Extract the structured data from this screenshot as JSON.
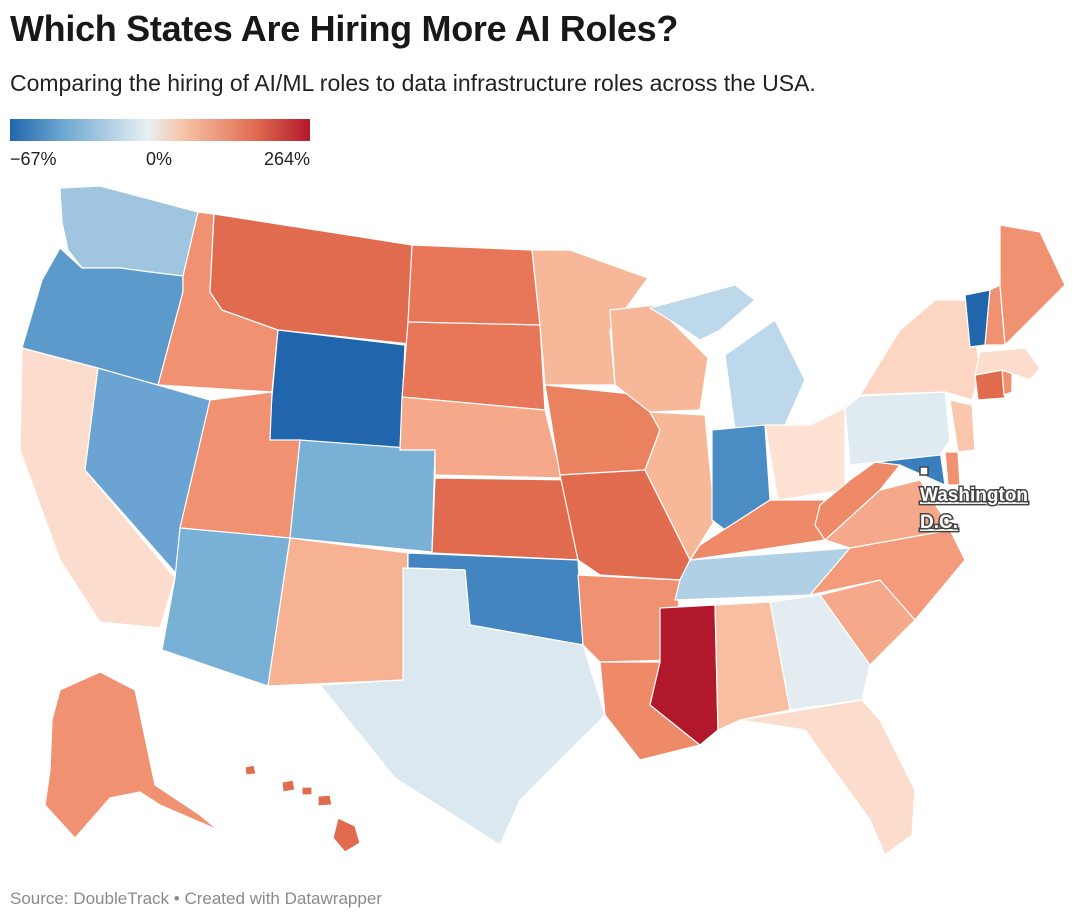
{
  "header": {
    "title": "Which States Are Hiring More AI Roles?",
    "subtitle": "Comparing the hiring of AI/ML roles to data infrastructure roles across the USA."
  },
  "legend": {
    "min_label": "−67%",
    "mid_label": "0%",
    "max_label": "264%",
    "colors": [
      "#2166ac",
      "#6fa8d2",
      "#e8f0f4",
      "#f7c2a6",
      "#e06b4f",
      "#b2182b"
    ]
  },
  "dc_label": [
    "Washington",
    "D.C."
  ],
  "footer": {
    "source": "Source: DoubleTrack • Created with Datawrapper"
  },
  "states": [
    {
      "name": "WA",
      "color": "#9fc5e0"
    },
    {
      "name": "OR",
      "color": "#5b9acb"
    },
    {
      "name": "CA",
      "color": "#fcdccd"
    },
    {
      "name": "NV",
      "color": "#6ba4d2"
    },
    {
      "name": "ID",
      "color": "#f09272"
    },
    {
      "name": "MT",
      "color": "#e06b4f"
    },
    {
      "name": "WY",
      "color": "#2166ac"
    },
    {
      "name": "UT",
      "color": "#f09272"
    },
    {
      "name": "AZ",
      "color": "#79b0d6"
    },
    {
      "name": "CO",
      "color": "#79b0d6"
    },
    {
      "name": "NM",
      "color": "#f7b293"
    },
    {
      "name": "ND",
      "color": "#e8775a"
    },
    {
      "name": "SD",
      "color": "#e8775a"
    },
    {
      "name": "NE",
      "color": "#f5a98a"
    },
    {
      "name": "KS",
      "color": "#e06b4f"
    },
    {
      "name": "OK",
      "color": "#4285c0"
    },
    {
      "name": "TX",
      "color": "#dbe8ef"
    },
    {
      "name": "MN",
      "color": "#f7b89a"
    },
    {
      "name": "IA",
      "color": "#ea815f"
    },
    {
      "name": "MO",
      "color": "#e06b4f"
    },
    {
      "name": "AR",
      "color": "#f09272"
    },
    {
      "name": "LA",
      "color": "#ee8a67"
    },
    {
      "name": "WI",
      "color": "#f7b89a"
    },
    {
      "name": "IL",
      "color": "#f7b89a"
    },
    {
      "name": "MI",
      "color": "#bcd8ea"
    },
    {
      "name": "IN",
      "color": "#4a8dc4"
    },
    {
      "name": "OH",
      "color": "#fde2d3"
    },
    {
      "name": "KY",
      "color": "#ee8a67"
    },
    {
      "name": "TN",
      "color": "#b0d0e6"
    },
    {
      "name": "MS",
      "color": "#b2182b"
    },
    {
      "name": "AL",
      "color": "#f8bea1"
    },
    {
      "name": "GA",
      "color": "#e3ecf1"
    },
    {
      "name": "FL",
      "color": "#fcdccd"
    },
    {
      "name": "SC",
      "color": "#f5a98a"
    },
    {
      "name": "NC",
      "color": "#f39b7b"
    },
    {
      "name": "VA",
      "color": "#f5a98a"
    },
    {
      "name": "WV",
      "color": "#ee8a67"
    },
    {
      "name": "MD",
      "color": "#3a7fbd"
    },
    {
      "name": "DE",
      "color": "#f09272"
    },
    {
      "name": "PA",
      "color": "#dfeaf1"
    },
    {
      "name": "NJ",
      "color": "#fac7ad"
    },
    {
      "name": "NY",
      "color": "#fcd6c2"
    },
    {
      "name": "CT",
      "color": "#e06b4f"
    },
    {
      "name": "RI",
      "color": "#f09272"
    },
    {
      "name": "MA",
      "color": "#fcdccd"
    },
    {
      "name": "VT",
      "color": "#2166ac"
    },
    {
      "name": "NH",
      "color": "#f09272"
    },
    {
      "name": "ME",
      "color": "#f09272"
    },
    {
      "name": "AK",
      "color": "#f09272"
    },
    {
      "name": "HI",
      "color": "#e06b4f"
    }
  ]
}
